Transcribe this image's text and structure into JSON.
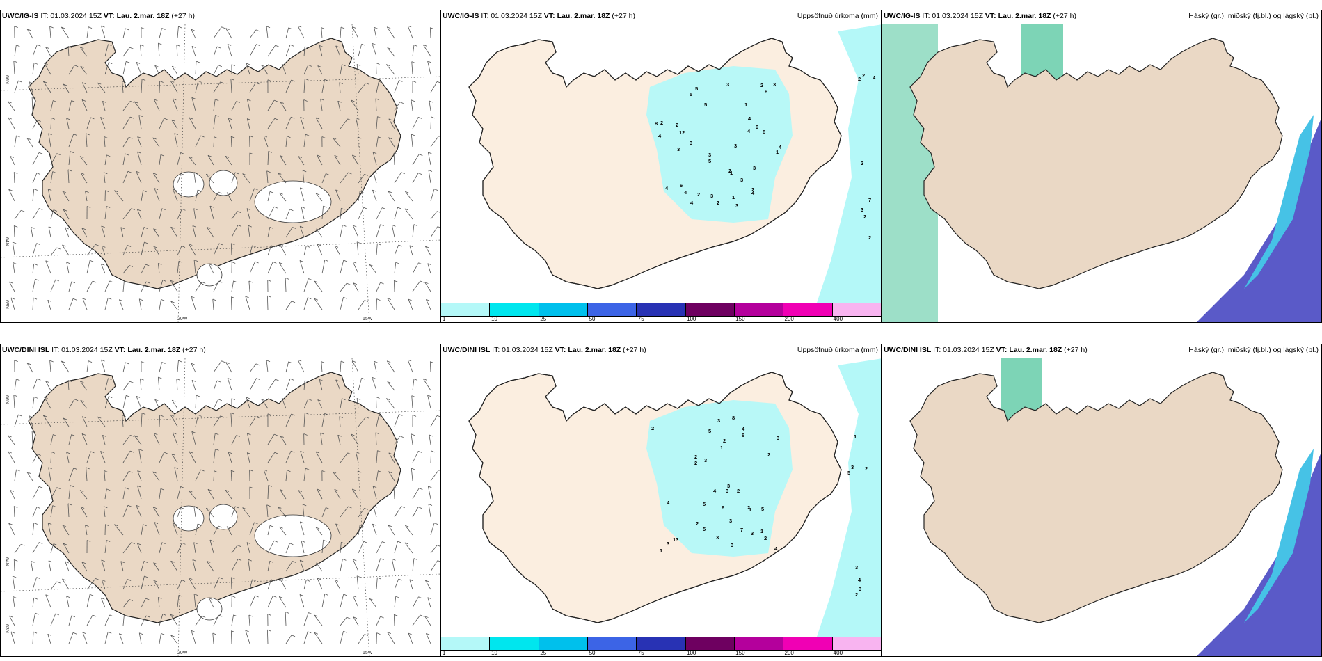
{
  "panels": {
    "top_left": {
      "model": "UWC/IG-IS",
      "it": "IT: 01.03.2024 15Z",
      "vt_label": "VT:",
      "vt": "Lau. 2.mar. 18Z",
      "lead": "(+27 h)"
    },
    "top_mid": {
      "model": "UWC/IG-IS",
      "it": "IT: 01.03.2024 15Z",
      "vt_label": "VT:",
      "vt": "Lau. 2.mar. 18Z",
      "lead": "(+27 h)",
      "right_title": "Uppsöfnuð úrkoma (mm)"
    },
    "top_right": {
      "model": "UWC/IG-IS",
      "it": "IT: 01.03.2024 15Z",
      "vt_label": "VT:",
      "vt": "Lau. 2.mar. 18Z",
      "lead": "(+27 h)",
      "right_title": "Háský (gr.), miðský (fj.bl.) og lágský (bl.)"
    },
    "bot_left": {
      "model": "UWC/DINI ISL",
      "it": "IT: 01.03.2024 15Z",
      "vt_label": "VT:",
      "vt": "Lau. 2.mar. 18Z",
      "lead": "(+27 h)"
    },
    "bot_mid": {
      "model": "UWC/DINI ISL",
      "it": "IT: 01.03.2024 15Z",
      "vt_label": "VT:",
      "vt": "Lau. 2.mar. 18Z",
      "lead": "(+27 h)",
      "right_title": "Uppsöfnuð úrkoma (mm)"
    },
    "bot_right": {
      "model": "UWC/DINI ISL",
      "it": "IT: 01.03.2024 15Z",
      "vt_label": "VT:",
      "vt": "Lau. 2.mar. 18Z",
      "lead": "(+27 h)",
      "right_title": "Háský (gr.), miðský (fj.bl.) og lágský (bl.)"
    }
  },
  "grid_labels": {
    "lat66": "66N",
    "lat64": "64N",
    "lat63": "63N",
    "lon20": "20W",
    "lon15": "15W"
  },
  "legend": {
    "ticks": [
      "1",
      "10",
      "25",
      "50",
      "75",
      "100",
      "150",
      "200",
      "400"
    ],
    "colors": [
      "#b4f8f8",
      "#00e6ee",
      "#00c0ec",
      "#3c64e6",
      "#2832b4",
      "#6e0060",
      "#b4009c",
      "#f000b4",
      "#f8b4f0"
    ]
  },
  "precip_numbers_top": [
    "3",
    "5",
    "6",
    "2",
    "9",
    "1",
    "1",
    "3",
    "5",
    "4",
    "4",
    "8",
    "3",
    "2",
    "4",
    "2",
    "4",
    "6",
    "3",
    "8",
    "2",
    "1",
    "4",
    "4",
    "3",
    "4",
    "3",
    "12",
    "2",
    "5",
    "3",
    "3",
    "1",
    "2",
    "5",
    "3",
    "3",
    "2",
    "4",
    "2",
    "2",
    "2",
    "4",
    "2",
    "2",
    "7",
    "3"
  ],
  "precip_numbers_bot": [
    "3",
    "5",
    "3",
    "6",
    "5",
    "8",
    "1",
    "4",
    "3",
    "2",
    "4",
    "2",
    "5",
    "3",
    "7",
    "2",
    "2",
    "4",
    "4",
    "3",
    "2",
    "13",
    "3",
    "2",
    "1",
    "6",
    "3",
    "1",
    "2",
    "3",
    "2",
    "5",
    "2",
    "1",
    "3",
    "3",
    "3",
    "2",
    "5",
    "4",
    "3",
    "3",
    "1",
    "2"
  ],
  "colors": {
    "land": "#ead8c5",
    "land_mid": "#fbeee0",
    "precip": "#b4f8f8",
    "cloud_high": "#26b886",
    "cloud_mid": "#5a5ac8",
    "cloud_low": "#46c2e6"
  }
}
